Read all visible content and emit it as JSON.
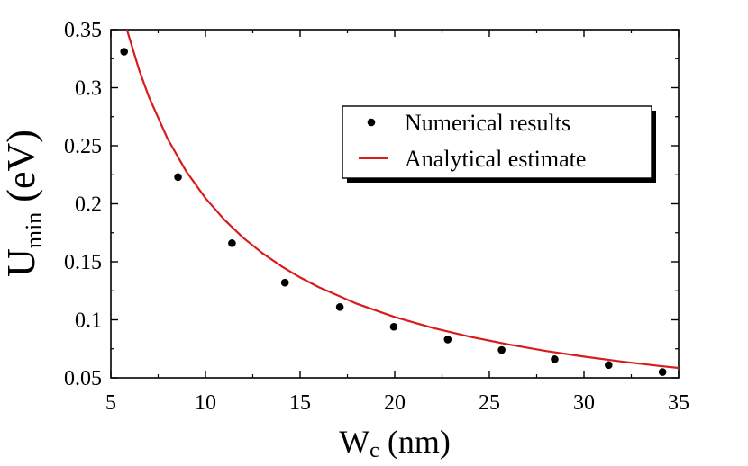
{
  "chart_data": {
    "type": "scatter",
    "xlim": [
      5,
      35
    ],
    "ylim": [
      0.05,
      0.35
    ],
    "x_ticks": [
      "5",
      "10",
      "15",
      "20",
      "25",
      "30",
      "35"
    ],
    "y_ticks": [
      "0.05",
      "0.1",
      "0.15",
      "0.2",
      "0.25",
      "0.3",
      "0.35"
    ],
    "xlabel": {
      "main": "W",
      "sub": "c",
      "unit": " (nm)"
    },
    "ylabel": {
      "main": "U",
      "sub": "min",
      "unit": " (eV)"
    },
    "grid": false,
    "legend_position": "top-right",
    "series": [
      {
        "name": "Numerical results",
        "kind": "points",
        "color": "#000000",
        "x": [
          5.7,
          8.55,
          11.4,
          14.2,
          17.1,
          19.95,
          22.8,
          25.65,
          28.45,
          31.3,
          34.15
        ],
        "y": [
          0.331,
          0.223,
          0.166,
          0.132,
          0.111,
          0.094,
          0.083,
          0.074,
          0.066,
          0.061,
          0.055
        ]
      },
      {
        "name": "Analytical estimate",
        "kind": "line",
        "color": "#d81b1b",
        "x": [
          5.85,
          6.5,
          7,
          8,
          9,
          10,
          11,
          12,
          13,
          14,
          15,
          16,
          18,
          20,
          22,
          24,
          26,
          28,
          30,
          32,
          34,
          35
        ],
        "y": [
          0.35,
          0.315,
          0.2925,
          0.2559,
          0.2275,
          0.2048,
          0.1862,
          0.1706,
          0.1575,
          0.1463,
          0.1365,
          0.128,
          0.1138,
          0.1024,
          0.0931,
          0.0853,
          0.0788,
          0.0731,
          0.0683,
          0.064,
          0.0602,
          0.0585
        ]
      }
    ]
  }
}
